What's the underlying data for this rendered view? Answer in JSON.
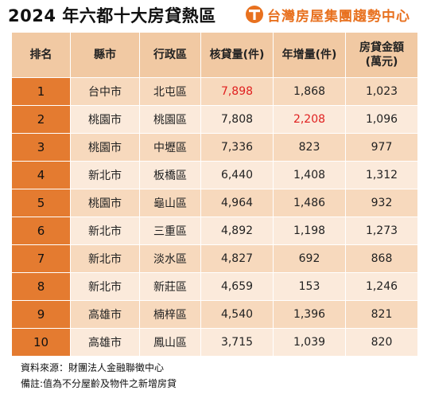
{
  "title": "2024 年六都十大房貸熱區",
  "brand": {
    "name": "台灣房屋集團趨勢中心",
    "logo_icon": "taiwan-realty-logo-icon",
    "accent_color": "#e8711f"
  },
  "table": {
    "headers": [
      "排名",
      "縣市",
      "行政區",
      "核貸量(件)",
      "年增量(件)",
      "房貸金額\n(萬元)"
    ],
    "rows": [
      {
        "rank": "1",
        "city": "台中市",
        "district": "北屯區",
        "loans": "7,898",
        "growth": "1,868",
        "amount": "1,023"
      },
      {
        "rank": "2",
        "city": "桃園市",
        "district": "桃園區",
        "loans": "7,808",
        "growth": "2,208",
        "amount": "1,096"
      },
      {
        "rank": "3",
        "city": "桃園市",
        "district": "中壢區",
        "loans": "7,336",
        "growth": "823",
        "amount": "977"
      },
      {
        "rank": "4",
        "city": "新北市",
        "district": "板橋區",
        "loans": "6,440",
        "growth": "1,408",
        "amount": "1,312"
      },
      {
        "rank": "5",
        "city": "桃園市",
        "district": "龜山區",
        "loans": "4,964",
        "growth": "1,486",
        "amount": "932"
      },
      {
        "rank": "6",
        "city": "新北市",
        "district": "三重區",
        "loans": "4,892",
        "growth": "1,198",
        "amount": "1,273"
      },
      {
        "rank": "7",
        "city": "新北市",
        "district": "淡水區",
        "loans": "4,827",
        "growth": "692",
        "amount": "868"
      },
      {
        "rank": "8",
        "city": "新北市",
        "district": "新莊區",
        "loans": "4,659",
        "growth": "153",
        "amount": "1,246"
      },
      {
        "rank": "9",
        "city": "高雄市",
        "district": "楠梓區",
        "loans": "4,540",
        "growth": "1,396",
        "amount": "821"
      },
      {
        "rank": "10",
        "city": "高雄市",
        "district": "鳳山區",
        "loans": "3,715",
        "growth": "1,039",
        "amount": "820"
      }
    ],
    "highlight_color": "#e02020"
  },
  "footer": {
    "source": "資料來源：財團法人金融聯徵中心",
    "note": "備註:值為不分屋齡及物件之新增房貸"
  }
}
